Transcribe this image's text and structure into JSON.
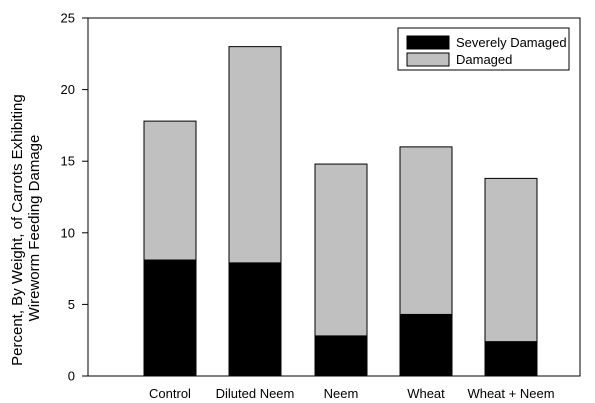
{
  "chart_data": {
    "type": "bar",
    "stacked": true,
    "categories": [
      "Control",
      "Diluted Neem",
      "Neem",
      "Wheat",
      "Wheat + Neem"
    ],
    "series": [
      {
        "name": "Severely Damaged",
        "values": [
          8.1,
          7.9,
          2.8,
          4.3,
          2.4
        ],
        "color": "#000000"
      },
      {
        "name": "Damaged",
        "values": [
          9.7,
          15.1,
          12.0,
          11.7,
          11.4
        ],
        "color": "#c0c0c0"
      }
    ],
    "totals": [
      17.8,
      23.0,
      14.8,
      16.0,
      13.8
    ],
    "ylabel": "Percent, By Weight, of Carrots Exhibiting Wireworm Feeding Damage",
    "ylabel_lines": [
      "Percent, By Weight, of Carrots Exhibiting",
      "Wireworm Feeding Damage"
    ],
    "ylim": [
      0,
      25
    ],
    "yticks": [
      0,
      5,
      10,
      15,
      20,
      25
    ],
    "grid": false,
    "legend_position": "top-right"
  }
}
